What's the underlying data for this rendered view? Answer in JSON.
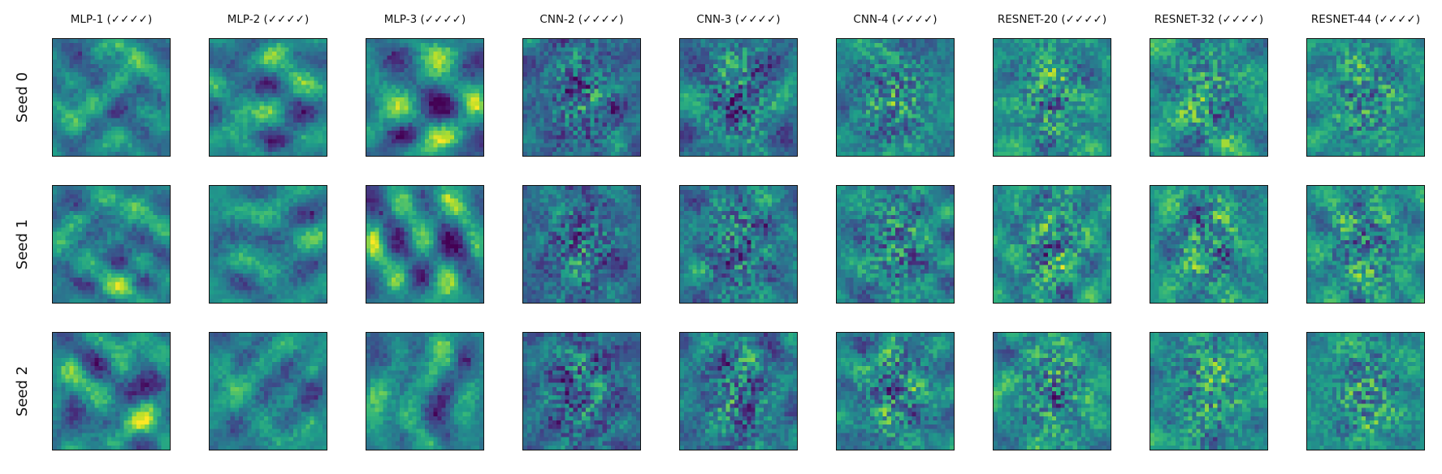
{
  "figure": {
    "columns": [
      {
        "title": "MLP-1 (✓✓✓✓)"
      },
      {
        "title": "MLP-2 (✓✓✓✓)"
      },
      {
        "title": "MLP-3 (✓✓✓✓)"
      },
      {
        "title": "CNN-2 (✓✓✓✓)"
      },
      {
        "title": "CNN-3 (✓✓✓✓)"
      },
      {
        "title": "CNN-4 (✓✓✓✓)"
      },
      {
        "title": "RESNET-20 (✓✓✓✓)"
      },
      {
        "title": "RESNET-32 (✓✓✓✓)"
      },
      {
        "title": "RESNET-44 (✓✓✓✓)"
      }
    ],
    "rows": [
      {
        "label": "Seed 0"
      },
      {
        "label": "Seed 1"
      },
      {
        "label": "Seed 2"
      }
    ],
    "colormap": "viridis"
  }
}
